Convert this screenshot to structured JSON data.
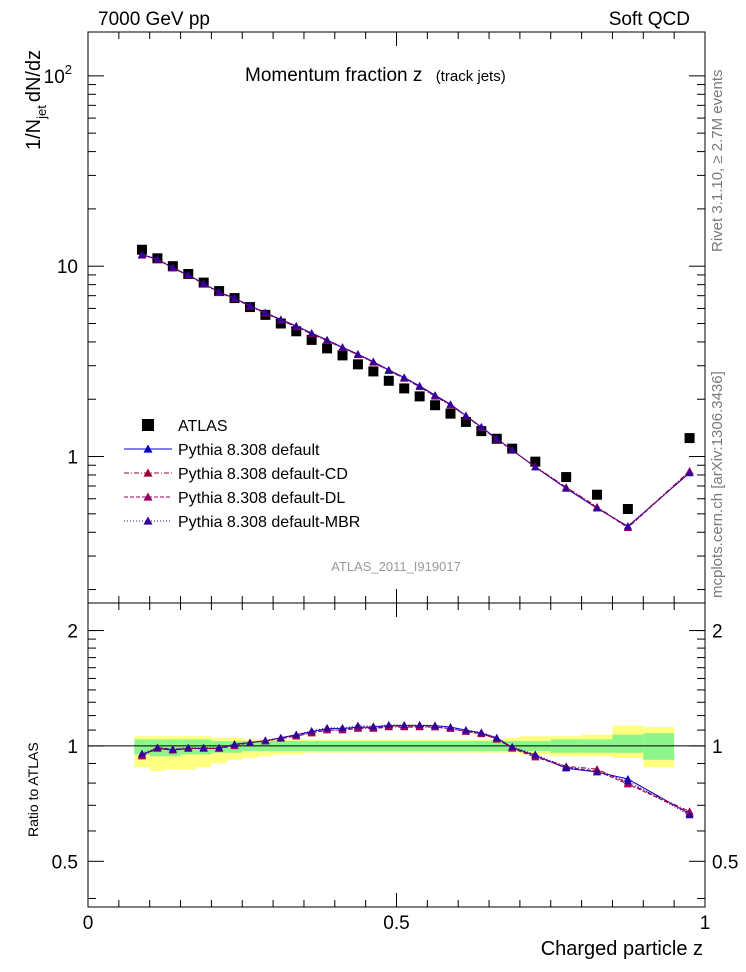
{
  "header": {
    "left": "7000 GeV pp",
    "right": "Soft QCD",
    "title_main": "Momentum fraction z",
    "title_sub": "(track jets)",
    "analysis_id": "ATLAS_2011_I919017",
    "side_top": "Rivet 3.1.10, ≥ 2.7M events",
    "side_bottom": "mcplots.cern.ch [arXiv:1306.3436]"
  },
  "colors": {
    "atlas": "#000000",
    "default": "#0000cc",
    "cd": "#990033",
    "dl": "#990066",
    "mbr": "#330099",
    "band_inner": "#8cf58c",
    "band_outer": "#ffff80"
  },
  "chart_data": [
    {
      "type": "scatter",
      "panel": "main",
      "ylabel": "1/N_jet dN/dz",
      "xlim": [
        0,
        1
      ],
      "ylim": [
        0.17,
        170
      ],
      "yscale": "log",
      "y_tick_labels": [
        "1",
        "10",
        "10^2"
      ],
      "legend_position": "lower-left",
      "x": [
        0.0875,
        0.1125,
        0.1375,
        0.1625,
        0.1875,
        0.2125,
        0.2375,
        0.2625,
        0.2875,
        0.3125,
        0.3375,
        0.3625,
        0.3875,
        0.4125,
        0.4375,
        0.4625,
        0.4875,
        0.5125,
        0.5375,
        0.5625,
        0.5875,
        0.6125,
        0.6375,
        0.6625,
        0.6875,
        0.725,
        0.775,
        0.825,
        0.875,
        0.975
      ],
      "series": [
        {
          "name": "ATLAS",
          "marker": "square",
          "values": [
            12.2,
            11.0,
            10.0,
            9.1,
            8.2,
            7.4,
            6.8,
            6.1,
            5.55,
            5.0,
            4.55,
            4.1,
            3.7,
            3.4,
            3.05,
            2.8,
            2.5,
            2.28,
            2.07,
            1.86,
            1.68,
            1.52,
            1.36,
            1.24,
            1.1,
            0.94,
            0.78,
            0.63,
            0.53,
            1.25
          ]
        },
        {
          "name": "Pythia 8.308 default",
          "marker": "triangle",
          "style": "solid",
          "values": [
            11.5,
            10.9,
            9.8,
            9.0,
            8.1,
            7.3,
            6.8,
            6.2,
            5.7,
            5.25,
            4.85,
            4.45,
            4.1,
            3.75,
            3.45,
            3.15,
            2.85,
            2.6,
            2.35,
            2.1,
            1.88,
            1.64,
            1.43,
            1.24,
            1.08,
            0.88,
            0.68,
            0.535,
            0.43,
            0.82
          ]
        },
        {
          "name": "Pythia 8.308 default-CD",
          "marker": "triangle",
          "style": "dashdot",
          "values": [
            11.4,
            10.85,
            9.75,
            8.95,
            8.05,
            7.25,
            6.75,
            6.15,
            5.65,
            5.2,
            4.8,
            4.4,
            4.05,
            3.72,
            3.42,
            3.12,
            2.82,
            2.57,
            2.32,
            2.07,
            1.86,
            1.63,
            1.42,
            1.23,
            1.08,
            0.885,
            0.69,
            0.545,
            0.425,
            0.84
          ]
        },
        {
          "name": "Pythia 8.308 default-DL",
          "marker": "triangle",
          "style": "dashed",
          "values": [
            11.45,
            10.9,
            9.8,
            8.98,
            8.08,
            7.28,
            6.78,
            6.18,
            5.68,
            5.22,
            4.82,
            4.42,
            4.08,
            3.73,
            3.43,
            3.13,
            2.83,
            2.58,
            2.33,
            2.08,
            1.87,
            1.63,
            1.42,
            1.24,
            1.08,
            0.882,
            0.685,
            0.54,
            0.422,
            0.83
          ]
        },
        {
          "name": "Pythia 8.308 default-MBR",
          "marker": "triangle",
          "style": "dotted",
          "values": [
            11.5,
            10.9,
            9.85,
            9.0,
            8.1,
            7.3,
            6.8,
            6.2,
            5.7,
            5.25,
            4.85,
            4.45,
            4.1,
            3.75,
            3.45,
            3.15,
            2.85,
            2.6,
            2.35,
            2.1,
            1.88,
            1.64,
            1.43,
            1.24,
            1.08,
            0.88,
            0.68,
            0.535,
            0.43,
            0.82
          ]
        }
      ]
    },
    {
      "type": "line",
      "panel": "ratio",
      "xlabel": "Charged particle z",
      "ylabel": "Ratio to ATLAS",
      "xlim": [
        0,
        1
      ],
      "ylim": [
        0.38,
        2.36
      ],
      "yscale": "log",
      "x_tick_labels": [
        "0",
        "0.5",
        "1"
      ],
      "y_tick_labels": [
        "0.5",
        "1",
        "2"
      ],
      "x_edges": [
        0.075,
        0.1,
        0.125,
        0.15,
        0.175,
        0.2,
        0.225,
        0.25,
        0.275,
        0.3,
        0.325,
        0.35,
        0.375,
        0.4,
        0.425,
        0.45,
        0.475,
        0.5,
        0.525,
        0.55,
        0.575,
        0.6,
        0.625,
        0.65,
        0.675,
        0.7,
        0.75,
        0.8,
        0.85,
        0.9,
        0.95,
        1.0
      ],
      "band_inner": [
        [
          0.95,
          1.04
        ],
        [
          0.94,
          1.04
        ],
        [
          0.94,
          1.04
        ],
        [
          0.95,
          1.04
        ],
        [
          0.95,
          1.04
        ],
        [
          0.96,
          1.03
        ],
        [
          0.96,
          1.03
        ],
        [
          0.97,
          1.03
        ],
        [
          0.97,
          1.03
        ],
        [
          0.97,
          1.03
        ],
        [
          0.97,
          1.03
        ],
        [
          0.97,
          1.03
        ],
        [
          0.97,
          1.03
        ],
        [
          0.97,
          1.03
        ],
        [
          0.97,
          1.03
        ],
        [
          0.97,
          1.03
        ],
        [
          0.97,
          1.03
        ],
        [
          0.97,
          1.03
        ],
        [
          0.97,
          1.03
        ],
        [
          0.97,
          1.03
        ],
        [
          0.97,
          1.03
        ],
        [
          0.97,
          1.03
        ],
        [
          0.97,
          1.03
        ],
        [
          0.97,
          1.03
        ],
        [
          0.97,
          1.03
        ],
        [
          0.97,
          1.03
        ],
        [
          0.96,
          1.04
        ],
        [
          0.96,
          1.04
        ],
        [
          0.96,
          1.07
        ],
        [
          0.92,
          1.08
        ]
      ],
      "band_outer": [
        [
          0.88,
          1.06
        ],
        [
          0.86,
          1.06
        ],
        [
          0.87,
          1.06
        ],
        [
          0.87,
          1.06
        ],
        [
          0.88,
          1.06
        ],
        [
          0.9,
          1.05
        ],
        [
          0.92,
          1.05
        ],
        [
          0.93,
          1.04
        ],
        [
          0.94,
          1.04
        ],
        [
          0.95,
          1.04
        ],
        [
          0.95,
          1.04
        ],
        [
          0.96,
          1.04
        ],
        [
          0.96,
          1.04
        ],
        [
          0.96,
          1.04
        ],
        [
          0.96,
          1.04
        ],
        [
          0.96,
          1.04
        ],
        [
          0.96,
          1.04
        ],
        [
          0.96,
          1.04
        ],
        [
          0.96,
          1.04
        ],
        [
          0.96,
          1.04
        ],
        [
          0.96,
          1.04
        ],
        [
          0.96,
          1.04
        ],
        [
          0.96,
          1.04
        ],
        [
          0.96,
          1.04
        ],
        [
          0.96,
          1.05
        ],
        [
          0.95,
          1.06
        ],
        [
          0.94,
          1.06
        ],
        [
          0.94,
          1.07
        ],
        [
          0.93,
          1.13
        ],
        [
          0.88,
          1.12
        ]
      ],
      "x": [
        0.0875,
        0.1125,
        0.1375,
        0.1625,
        0.1875,
        0.2125,
        0.2375,
        0.2625,
        0.2875,
        0.3125,
        0.3375,
        0.3625,
        0.3875,
        0.4125,
        0.4375,
        0.4625,
        0.4875,
        0.5125,
        0.5375,
        0.5625,
        0.5875,
        0.6125,
        0.6375,
        0.6625,
        0.6875,
        0.725,
        0.775,
        0.825,
        0.875,
        0.975
      ],
      "series": [
        {
          "name": "Pythia 8.308 default",
          "values": [
            0.95,
            0.985,
            0.975,
            0.985,
            0.985,
            0.985,
            1.01,
            1.02,
            1.03,
            1.05,
            1.07,
            1.09,
            1.11,
            1.11,
            1.12,
            1.12,
            1.13,
            1.13,
            1.13,
            1.13,
            1.12,
            1.1,
            1.08,
            1.05,
            0.99,
            0.945,
            0.875,
            0.855,
            0.82,
            0.665
          ]
        },
        {
          "name": "Pythia 8.308 default-CD",
          "values": [
            0.94,
            0.985,
            0.975,
            0.985,
            0.985,
            0.985,
            1.01,
            1.02,
            1.03,
            1.05,
            1.06,
            1.08,
            1.1,
            1.1,
            1.11,
            1.11,
            1.12,
            1.12,
            1.12,
            1.12,
            1.11,
            1.09,
            1.08,
            1.04,
            0.99,
            0.94,
            0.885,
            0.87,
            0.8,
            0.675
          ]
        },
        {
          "name": "Pythia 8.308 default-DL",
          "values": [
            0.945,
            0.99,
            0.98,
            0.985,
            0.985,
            0.985,
            1.0,
            1.02,
            1.03,
            1.045,
            1.06,
            1.085,
            1.1,
            1.1,
            1.115,
            1.115,
            1.125,
            1.125,
            1.125,
            1.12,
            1.11,
            1.09,
            1.075,
            1.045,
            0.985,
            0.935,
            0.88,
            0.86,
            0.795,
            0.67
          ]
        },
        {
          "name": "Pythia 8.308 default-MBR",
          "values": [
            0.955,
            0.99,
            0.98,
            0.99,
            0.99,
            0.99,
            1.01,
            1.02,
            1.035,
            1.05,
            1.07,
            1.095,
            1.115,
            1.115,
            1.13,
            1.125,
            1.135,
            1.135,
            1.135,
            1.13,
            1.12,
            1.1,
            1.085,
            1.05,
            0.995,
            0.95,
            0.88,
            0.855,
            0.81,
            0.66
          ]
        }
      ]
    }
  ]
}
